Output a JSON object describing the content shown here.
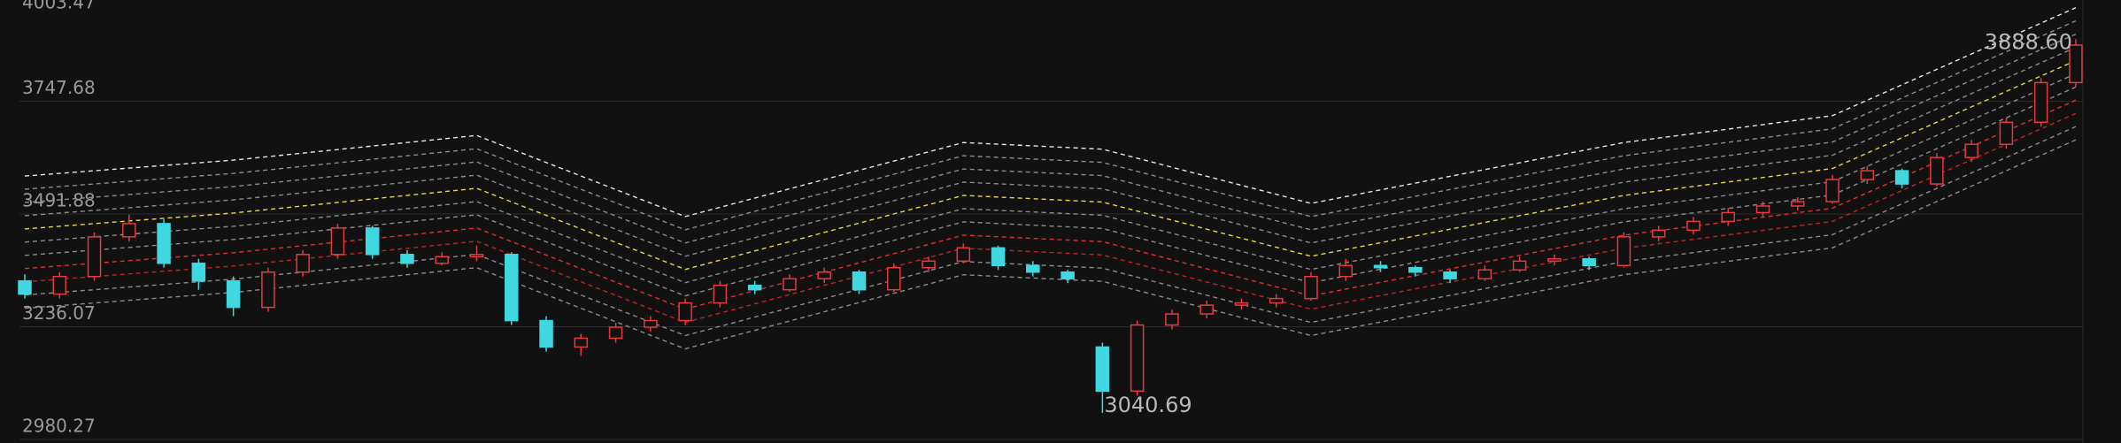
{
  "chart_data": {
    "type": "candlestick",
    "ylim": [
      2980.27,
      4003.47
    ],
    "yticks": [
      2980.27,
      3236.07,
      3491.88,
      3747.68,
      4003.47
    ],
    "grid": true,
    "up_color": "#e8383d",
    "down_color": "#3fd8e0",
    "open": [
      3340,
      3310,
      3350,
      3440,
      3470,
      3380,
      3340,
      3280,
      3360,
      3400,
      3460,
      3400,
      3380,
      3395,
      3400,
      3250,
      3190,
      3210,
      3235,
      3250,
      3290,
      3330,
      3320,
      3345,
      3360,
      3320,
      3370,
      3385,
      3415,
      3375,
      3360,
      3190,
      3090,
      3240,
      3265,
      3285,
      3290,
      3300,
      3350,
      3375,
      3370,
      3360,
      3345,
      3365,
      3385,
      3390,
      3375,
      3440,
      3455,
      3475,
      3495,
      3510,
      3520,
      3570,
      3590,
      3560,
      3620,
      3650,
      3700,
      3790
    ],
    "high": [
      3355,
      3360,
      3450,
      3490,
      3480,
      3390,
      3350,
      3370,
      3410,
      3470,
      3465,
      3410,
      3405,
      3420,
      3405,
      3260,
      3220,
      3245,
      3260,
      3300,
      3340,
      3340,
      3355,
      3370,
      3365,
      3380,
      3395,
      3425,
      3420,
      3385,
      3365,
      3200,
      3250,
      3275,
      3295,
      3300,
      3310,
      3360,
      3390,
      3385,
      3375,
      3365,
      3375,
      3395,
      3400,
      3395,
      3450,
      3465,
      3485,
      3505,
      3520,
      3530,
      3580,
      3600,
      3595,
      3630,
      3660,
      3710,
      3800,
      3888.6
    ],
    "low": [
      3300,
      3300,
      3340,
      3430,
      3370,
      3320,
      3260,
      3270,
      3350,
      3390,
      3390,
      3370,
      3375,
      3385,
      3240,
      3180,
      3170,
      3200,
      3225,
      3240,
      3280,
      3310,
      3315,
      3335,
      3310,
      3315,
      3360,
      3380,
      3365,
      3350,
      3335,
      3040.69,
      3080,
      3230,
      3255,
      3275,
      3280,
      3295,
      3340,
      3360,
      3350,
      3335,
      3340,
      3360,
      3375,
      3365,
      3370,
      3430,
      3445,
      3465,
      3485,
      3500,
      3515,
      3560,
      3550,
      3555,
      3610,
      3640,
      3690,
      3780
    ],
    "close": [
      3310,
      3350,
      3440,
      3470,
      3380,
      3340,
      3280,
      3360,
      3400,
      3460,
      3400,
      3380,
      3395,
      3400,
      3250,
      3190,
      3210,
      3235,
      3250,
      3290,
      3330,
      3320,
      3345,
      3360,
      3320,
      3370,
      3385,
      3415,
      3375,
      3360,
      3345,
      3090,
      3240,
      3265,
      3285,
      3290,
      3300,
      3350,
      3375,
      3370,
      3360,
      3345,
      3365,
      3385,
      3390,
      3375,
      3440,
      3455,
      3475,
      3495,
      3510,
      3520,
      3570,
      3590,
      3560,
      3620,
      3650,
      3700,
      3790,
      3875
    ],
    "band_x": [
      0,
      6,
      13,
      19,
      27,
      31,
      37,
      46,
      52,
      59
    ],
    "bands": [
      {
        "color": "#e6e6e6",
        "values": [
          3578,
          3614,
          3670,
          3486,
          3654,
          3639,
          3516,
          3654,
          3715,
          3960
        ]
      },
      {
        "color": "#8c8c8c",
        "values": [
          3548,
          3584,
          3640,
          3456,
          3624,
          3609,
          3486,
          3624,
          3685,
          3930
        ]
      },
      {
        "color": "#8c8c8c",
        "values": [
          3518,
          3554,
          3610,
          3426,
          3594,
          3579,
          3456,
          3594,
          3655,
          3900
        ]
      },
      {
        "color": "#8c8c8c",
        "values": [
          3488,
          3524,
          3580,
          3396,
          3564,
          3549,
          3426,
          3564,
          3625,
          3870
        ]
      },
      {
        "color": "#e8d83a",
        "values": [
          3458,
          3494,
          3550,
          3366,
          3534,
          3519,
          3396,
          3534,
          3595,
          3840
        ]
      },
      {
        "color": "#8c8c8c",
        "values": [
          3428,
          3464,
          3520,
          3336,
          3504,
          3489,
          3366,
          3504,
          3565,
          3810
        ]
      },
      {
        "color": "#8c8c8c",
        "values": [
          3398,
          3434,
          3490,
          3306,
          3474,
          3459,
          3336,
          3474,
          3535,
          3780
        ]
      },
      {
        "color": "#e03030",
        "values": [
          3368,
          3404,
          3460,
          3276,
          3444,
          3429,
          3306,
          3444,
          3505,
          3750
        ]
      },
      {
        "color": "#c02424",
        "values": [
          3338,
          3374,
          3430,
          3246,
          3414,
          3399,
          3276,
          3414,
          3475,
          3720
        ]
      },
      {
        "color": "#8c8c8c",
        "values": [
          3308,
          3344,
          3400,
          3216,
          3384,
          3369,
          3246,
          3384,
          3445,
          3690
        ]
      },
      {
        "color": "#8c8c8c",
        "values": [
          3278,
          3314,
          3370,
          3186,
          3354,
          3339,
          3216,
          3354,
          3415,
          3660
        ]
      }
    ],
    "max_label": "3888.60",
    "min_label": "3040.69"
  }
}
